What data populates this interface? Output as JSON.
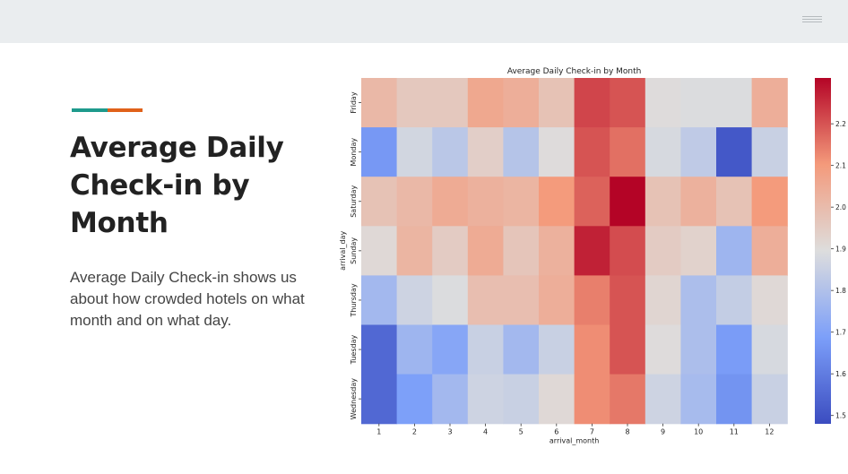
{
  "slide": {
    "title": "Average Daily Check-in by Month",
    "description": "Average Daily Check-in shows us about how crowded hotels on what month and on what day.",
    "menu_icon": "hamburger-menu-icon",
    "accent_colors": [
      "#1e9a8c",
      "#e0611a"
    ]
  },
  "chart_data": {
    "type": "heatmap",
    "title": "Average Daily Check-in by Month",
    "xlabel": "arrival_month",
    "ylabel": "arrival_day",
    "x": [
      "1",
      "2",
      "3",
      "4",
      "5",
      "6",
      "7",
      "8",
      "9",
      "10",
      "11",
      "12"
    ],
    "y": [
      "Friday",
      "Monday",
      "Saturday",
      "Sunday",
      "Thursday",
      "Tuesday",
      "Wednesday"
    ],
    "values": [
      [
        2.01,
        1.96,
        1.96,
        2.06,
        2.04,
        1.98,
        2.22,
        2.2,
        1.9,
        1.89,
        1.89,
        2.04
      ],
      [
        1.67,
        1.87,
        1.82,
        1.94,
        1.81,
        1.9,
        2.2,
        2.16,
        1.88,
        1.83,
        1.51,
        1.85
      ],
      [
        1.98,
        2.01,
        2.05,
        2.03,
        2.02,
        2.1,
        2.18,
        2.31,
        1.98,
        2.03,
        1.98,
        2.1
      ],
      [
        1.91,
        2.02,
        1.95,
        2.05,
        1.97,
        2.03,
        2.27,
        2.21,
        1.95,
        1.93,
        1.76,
        2.04
      ],
      [
        1.77,
        1.86,
        1.89,
        1.99,
        1.99,
        2.04,
        2.14,
        2.2,
        1.92,
        1.79,
        1.84,
        1.91
      ],
      [
        1.55,
        1.76,
        1.71,
        1.85,
        1.77,
        1.85,
        2.12,
        2.2,
        1.9,
        1.79,
        1.68,
        1.88
      ],
      [
        1.55,
        1.69,
        1.77,
        1.86,
        1.85,
        1.91,
        2.12,
        2.15,
        1.86,
        1.78,
        1.66,
        1.85
      ]
    ],
    "zrange": [
      1.48,
      2.31
    ],
    "colorbar_ticks": [
      "1.5",
      "1.6",
      "1.7",
      "1.8",
      "1.9",
      "2.0",
      "2.1",
      "2.2"
    ],
    "colormap": "coolwarm"
  }
}
